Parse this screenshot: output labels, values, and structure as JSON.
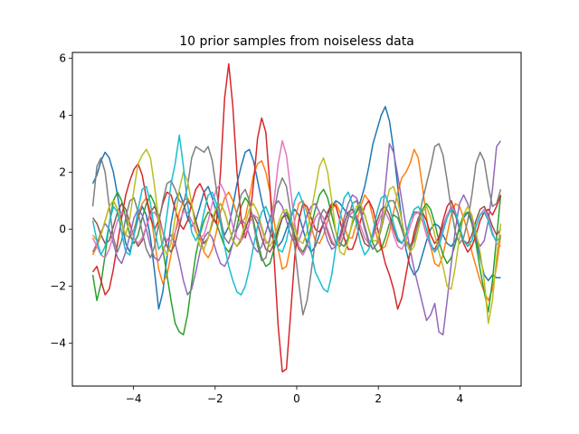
{
  "chart_data": {
    "type": "line",
    "title": "10 prior samples from noiseless data",
    "xlabel": "",
    "ylabel": "",
    "xlim": [
      -5.5,
      5.5
    ],
    "ylim": [
      -5.5,
      6.2
    ],
    "x_ticks": [
      -4,
      -2,
      0,
      2,
      4
    ],
    "y_ticks": [
      -4,
      -2,
      0,
      2,
      4,
      6
    ],
    "x_tick_labels": [
      "−4",
      "−2",
      "0",
      "2",
      "4"
    ],
    "y_tick_labels": [
      "−4",
      "−2",
      "0",
      "2",
      "4",
      "6"
    ],
    "grid": false,
    "legend": "none",
    "x": {
      "start": -5,
      "stop": 5,
      "num": 100
    },
    "series": [
      {
        "color": "#1f77b4",
        "values": [
          1.6,
          1.9,
          2.4,
          2.7,
          2.5,
          2.0,
          1.2,
          0.3,
          -0.5,
          -0.8,
          -0.2,
          0.4,
          0.8,
          0.5,
          -0.3,
          -1.5,
          -2.8,
          -2.2,
          -1.0,
          0.2,
          1.0,
          1.3,
          0.9,
          0.4,
          0.1,
          0.3,
          0.8,
          1.3,
          1.5,
          1.1,
          0.6,
          0.2,
          -0.2,
          0.1,
          0.8,
          1.6,
          2.2,
          2.7,
          2.8,
          2.4,
          1.7,
          1.0,
          0.4,
          -0.1,
          -0.4,
          -0.6,
          -0.4,
          0.0,
          0.4,
          0.7,
          0.5,
          0.0,
          -0.5,
          -0.8,
          -0.6,
          -0.2,
          0.2,
          0.5,
          0.8,
          1.0,
          0.9,
          0.7,
          0.5,
          0.4,
          0.6,
          1.0,
          1.5,
          2.2,
          3.0,
          3.5,
          4.0,
          4.3,
          3.8,
          2.8,
          1.5,
          0.3,
          -0.7,
          -1.3,
          -1.6,
          -1.4,
          -0.9,
          -0.4,
          0.0,
          0.2,
          0.1,
          -0.2,
          -0.5,
          -0.6,
          -0.4,
          0.0,
          0.4,
          0.6,
          0.3,
          -0.3,
          -1.0,
          -1.6,
          -1.8,
          -1.6,
          -1.7,
          -1.7
        ]
      },
      {
        "color": "#ff7f0e",
        "values": [
          -0.9,
          -0.6,
          -0.2,
          0.3,
          0.8,
          1.0,
          0.7,
          0.2,
          -0.2,
          -0.3,
          0.0,
          0.5,
          0.9,
          1.1,
          0.6,
          -0.4,
          -1.4,
          -1.9,
          -1.6,
          -0.9,
          -0.1,
          0.6,
          1.0,
          1.1,
          0.8,
          0.3,
          -0.3,
          -0.8,
          -1.0,
          -0.7,
          -0.1,
          0.6,
          1.1,
          1.3,
          1.0,
          0.5,
          0.2,
          0.4,
          1.1,
          1.9,
          2.3,
          2.4,
          2.0,
          1.3,
          0.3,
          -0.7,
          -1.4,
          -1.3,
          -0.6,
          0.3,
          0.9,
          1.0,
          0.6,
          0.1,
          -0.4,
          -0.5,
          -0.2,
          0.3,
          0.7,
          0.9,
          0.6,
          0.1,
          -0.3,
          -0.3,
          0.2,
          0.8,
          1.2,
          1.0,
          0.4,
          -0.3,
          -0.7,
          -0.6,
          -0.1,
          0.6,
          1.3,
          1.8,
          2.0,
          2.3,
          2.8,
          2.5,
          1.5,
          0.4,
          -0.6,
          -1.2,
          -1.3,
          -0.9,
          -0.2,
          0.5,
          0.9,
          0.8,
          0.4,
          -0.1,
          -0.8,
          -1.3,
          -1.8,
          -2.2,
          -2.5,
          -2.1,
          -1.3,
          -0.2
        ]
      },
      {
        "color": "#2ca02c",
        "values": [
          -1.6,
          -2.5,
          -1.9,
          -0.9,
          0.2,
          1.0,
          1.3,
          1.0,
          0.4,
          -0.2,
          -0.5,
          -0.2,
          0.4,
          0.9,
          1.2,
          0.9,
          0.2,
          -0.7,
          -1.6,
          -2.5,
          -3.3,
          -3.6,
          -3.7,
          -3.0,
          -1.9,
          -0.9,
          -0.2,
          0.3,
          0.6,
          0.5,
          0.2,
          -0.2,
          -0.6,
          -0.8,
          -0.5,
          0.1,
          0.8,
          1.1,
          0.9,
          0.3,
          -0.4,
          -1.0,
          -1.3,
          -1.2,
          -0.7,
          -0.1,
          0.4,
          0.6,
          0.3,
          -0.2,
          -0.6,
          -0.8,
          -0.5,
          0.1,
          0.7,
          1.2,
          1.4,
          1.1,
          0.5,
          -0.1,
          -0.5,
          -0.6,
          -0.3,
          0.2,
          0.6,
          0.8,
          0.5,
          0.0,
          -0.5,
          -0.8,
          -0.7,
          -0.3,
          0.2,
          0.5,
          0.4,
          0.0,
          -0.4,
          -0.6,
          -0.3,
          0.2,
          0.7,
          0.9,
          0.7,
          0.2,
          -0.4,
          -0.9,
          -1.2,
          -1.0,
          -0.5,
          0.1,
          0.5,
          0.6,
          0.2,
          -0.5,
          -1.4,
          -2.2,
          -2.9,
          -1.8,
          -0.3,
          1.2
        ]
      },
      {
        "color": "#d62728",
        "values": [
          -1.5,
          -1.3,
          -1.8,
          -2.3,
          -2.1,
          -1.4,
          -0.5,
          0.4,
          1.2,
          1.7,
          2.1,
          2.3,
          1.9,
          1.1,
          0.4,
          0.0,
          0.3,
          0.9,
          1.3,
          1.2,
          0.7,
          0.2,
          0.0,
          0.3,
          0.9,
          1.4,
          1.6,
          1.3,
          0.8,
          0.4,
          0.2,
          2.0,
          4.6,
          5.8,
          4.3,
          2.0,
          0.4,
          -0.3,
          0.2,
          1.6,
          3.2,
          3.9,
          3.4,
          1.5,
          -1.0,
          -3.4,
          -5.0,
          -4.9,
          -3.0,
          -1.0,
          0.3,
          0.9,
          0.8,
          0.4,
          0.0,
          -0.1,
          0.2,
          0.6,
          0.9,
          0.8,
          0.3,
          -0.3,
          -0.7,
          -0.7,
          -0.3,
          0.3,
          0.8,
          1.0,
          0.7,
          0.1,
          -0.6,
          -1.2,
          -1.6,
          -2.1,
          -2.8,
          -2.4,
          -1.6,
          -0.8,
          -0.1,
          0.4,
          0.6,
          0.3,
          -0.2,
          -0.5,
          -0.3,
          0.3,
          0.8,
          1.0,
          0.6,
          0.0,
          -0.5,
          -0.8,
          -0.6,
          -0.2,
          0.3,
          0.6,
          0.7,
          0.5,
          0.8,
          1.2
        ]
      },
      {
        "color": "#9467bd",
        "values": [
          -0.8,
          -0.5,
          -0.1,
          0.2,
          0.0,
          -0.5,
          -1.0,
          -1.2,
          -0.8,
          -0.2,
          0.4,
          0.7,
          0.5,
          0.0,
          -0.6,
          -1.0,
          -1.1,
          -0.8,
          -0.4,
          -0.2,
          -0.5,
          -1.1,
          -1.8,
          -2.3,
          -2.1,
          -1.5,
          -0.8,
          -0.3,
          -0.1,
          -0.3,
          -0.8,
          -1.2,
          -1.3,
          -1.0,
          -0.5,
          0.0,
          0.3,
          0.2,
          -0.2,
          -0.6,
          -0.8,
          -0.6,
          -0.1,
          0.4,
          0.8,
          1.0,
          0.8,
          0.3,
          -0.2,
          -0.5,
          -0.4,
          0.0,
          0.5,
          0.8,
          0.9,
          0.6,
          0.1,
          -0.4,
          -0.7,
          -0.6,
          -0.2,
          0.4,
          0.9,
          1.2,
          1.1,
          0.7,
          0.1,
          -0.4,
          -0.7,
          -0.5,
          0.2,
          1.5,
          3.0,
          2.7,
          1.9,
          1.0,
          0.1,
          -0.7,
          -1.4,
          -2.0,
          -2.6,
          -3.2,
          -3.0,
          -2.6,
          -3.6,
          -3.7,
          -2.5,
          -1.2,
          0.0,
          0.9,
          1.2,
          0.9,
          0.3,
          -0.3,
          -0.6,
          -0.4,
          0.3,
          1.4,
          2.9,
          3.1
        ]
      },
      {
        "color": "#8c564b",
        "values": [
          0.4,
          0.2,
          -0.2,
          -0.5,
          -0.4,
          0.1,
          0.6,
          0.9,
          0.7,
          0.2,
          -0.3,
          -0.6,
          -0.4,
          0.1,
          0.6,
          0.8,
          0.5,
          -0.1,
          -0.6,
          -0.8,
          -0.5,
          0.1,
          0.7,
          1.0,
          0.8,
          0.3,
          -0.2,
          -0.5,
          -0.3,
          0.2,
          0.7,
          0.9,
          0.6,
          0.1,
          -0.4,
          -0.6,
          -0.4,
          0.0,
          0.4,
          0.5,
          0.2,
          -0.3,
          -0.7,
          -0.8,
          -0.5,
          0.0,
          0.4,
          0.5,
          0.2,
          -0.3,
          -0.7,
          -0.9,
          -0.6,
          -0.1,
          0.4,
          0.6,
          0.4,
          -0.1,
          -0.5,
          -0.6,
          -0.3,
          0.2,
          0.6,
          0.7,
          0.4,
          -0.1,
          -0.5,
          -0.6,
          -0.2,
          0.3,
          0.7,
          0.8,
          0.5,
          0.0,
          -0.4,
          -0.5,
          -0.2,
          0.3,
          0.6,
          0.6,
          0.3,
          -0.2,
          -0.6,
          -0.7,
          -0.4,
          0.1,
          0.5,
          0.7,
          0.5,
          0.0,
          -0.4,
          -0.5,
          -0.2,
          0.3,
          0.7,
          0.8,
          0.5,
          0.1,
          -0.2,
          0.0
        ]
      },
      {
        "color": "#e377c2",
        "values": [
          -0.3,
          -0.6,
          -0.9,
          -1.0,
          -0.7,
          -0.2,
          0.3,
          0.6,
          0.5,
          0.1,
          -0.3,
          -0.5,
          -0.3,
          0.1,
          0.5,
          0.6,
          0.3,
          -0.1,
          -0.4,
          -0.4,
          -0.1,
          0.3,
          0.6,
          0.6,
          0.3,
          -0.1,
          -0.3,
          -0.2,
          0.3,
          0.9,
          1.4,
          1.6,
          1.3,
          0.7,
          0.1,
          -0.3,
          -0.4,
          -0.2,
          0.2,
          0.5,
          0.4,
          0.0,
          -0.5,
          -0.4,
          1.0,
          2.3,
          3.1,
          2.6,
          1.4,
          0.2,
          -0.6,
          -0.9,
          -0.6,
          -0.1,
          0.4,
          0.6,
          0.4,
          0.0,
          -0.4,
          -0.6,
          -0.4,
          0.0,
          0.4,
          0.6,
          0.5,
          0.1,
          -0.3,
          -0.5,
          -0.3,
          0.1,
          0.5,
          0.6,
          0.3,
          -0.2,
          -0.6,
          -0.7,
          -0.4,
          0.1,
          0.5,
          0.6,
          0.3,
          -0.2,
          -0.6,
          -0.8,
          -0.5,
          0.0,
          0.5,
          0.8,
          0.6,
          0.1,
          -0.4,
          -0.6,
          -0.4,
          0.1,
          0.5,
          0.7,
          0.4,
          -0.1,
          -0.5,
          -0.6
        ]
      },
      {
        "color": "#7f7f7f",
        "values": [
          0.8,
          2.2,
          2.5,
          2.0,
          0.8,
          -0.3,
          -0.8,
          -0.4,
          0.4,
          1.0,
          1.1,
          0.6,
          -0.1,
          -0.7,
          -1.0,
          -0.6,
          0.2,
          1.0,
          1.6,
          1.7,
          1.4,
          1.0,
          0.9,
          1.5,
          2.5,
          2.9,
          2.8,
          2.7,
          2.9,
          2.4,
          1.4,
          0.4,
          -0.3,
          -0.5,
          -0.1,
          0.6,
          1.2,
          1.4,
          1.0,
          0.2,
          -0.6,
          -1.1,
          -1.0,
          -0.3,
          0.6,
          1.4,
          1.8,
          1.5,
          0.6,
          -0.6,
          -1.9,
          -3.0,
          -2.5,
          -1.5,
          -0.4,
          0.4,
          0.7,
          0.5,
          0.0,
          -0.5,
          -0.6,
          -0.2,
          0.4,
          0.9,
          1.0,
          0.6,
          0.0,
          -0.5,
          -0.7,
          -0.5,
          0.0,
          0.6,
          1.0,
          1.0,
          0.6,
          0.0,
          -0.5,
          -0.7,
          -0.4,
          0.3,
          1.0,
          1.6,
          2.2,
          2.9,
          3.0,
          2.6,
          1.7,
          0.7,
          -0.1,
          -0.5,
          -0.3,
          0.3,
          1.2,
          2.3,
          2.7,
          2.4,
          1.5,
          0.8,
          0.9,
          1.4
        ]
      },
      {
        "color": "#bcbd22",
        "values": [
          -0.2,
          -0.4,
          -0.2,
          0.3,
          0.8,
          1.0,
          0.7,
          0.2,
          -0.2,
          0.4,
          1.4,
          2.3,
          2.6,
          2.8,
          2.5,
          1.5,
          0.3,
          -0.6,
          -0.9,
          -0.5,
          0.4,
          1.4,
          2.0,
          1.7,
          0.9,
          0.0,
          -0.6,
          -0.7,
          -0.3,
          0.3,
          0.8,
          0.9,
          0.6,
          0.1,
          -0.4,
          -0.6,
          -0.3,
          0.2,
          0.7,
          0.9,
          0.6,
          0.1,
          -0.4,
          -0.6,
          -0.3,
          0.2,
          0.6,
          0.7,
          0.4,
          0.0,
          -0.4,
          -0.5,
          -0.1,
          0.6,
          1.4,
          2.2,
          2.5,
          2.0,
          1.0,
          -0.1,
          -0.8,
          -0.9,
          -0.4,
          0.3,
          0.8,
          0.9,
          0.5,
          0.0,
          -0.4,
          -0.4,
          0.1,
          0.8,
          1.4,
          1.5,
          1.0,
          0.3,
          -0.4,
          -0.8,
          -0.6,
          0.0,
          0.6,
          0.8,
          0.4,
          -0.2,
          -0.8,
          -1.3,
          -2.0,
          -2.1,
          -1.3,
          -0.3,
          0.5,
          0.8,
          0.5,
          -0.1,
          -0.8,
          -1.8,
          -3.3,
          -2.5,
          -1.0,
          0.2
        ]
      },
      {
        "color": "#17becf",
        "values": [
          0.3,
          -0.4,
          -0.9,
          -0.6,
          0.2,
          0.8,
          0.6,
          -0.1,
          -0.8,
          -0.9,
          -0.2,
          0.7,
          1.4,
          1.5,
          0.9,
          0.0,
          -0.7,
          -0.5,
          0.5,
          1.6,
          2.3,
          3.3,
          2.2,
          0.9,
          -0.1,
          -0.4,
          -0.1,
          0.6,
          1.2,
          1.3,
          0.9,
          0.2,
          -0.6,
          -1.3,
          -1.8,
          -2.2,
          -2.3,
          -2.0,
          -1.4,
          -0.6,
          0.1,
          0.6,
          0.8,
          0.4,
          -0.2,
          -0.7,
          -0.8,
          -0.4,
          0.3,
          1.0,
          1.3,
          0.9,
          0.1,
          -0.8,
          -1.5,
          -1.8,
          -2.1,
          -2.2,
          -1.6,
          -0.6,
          0.4,
          1.1,
          1.3,
          0.9,
          0.2,
          -0.5,
          -0.9,
          -0.7,
          -0.1,
          0.6,
          1.1,
          1.2,
          0.8,
          0.2,
          -0.3,
          -0.5,
          -0.2,
          0.3,
          0.7,
          0.8,
          0.5,
          0.0,
          -0.5,
          -0.8,
          -0.6,
          -0.1,
          0.4,
          0.7,
          0.6,
          0.1,
          -0.4,
          -0.6,
          -0.4,
          0.1,
          0.5,
          0.6,
          0.3,
          -0.2,
          -0.4,
          -0.3
        ]
      }
    ]
  }
}
